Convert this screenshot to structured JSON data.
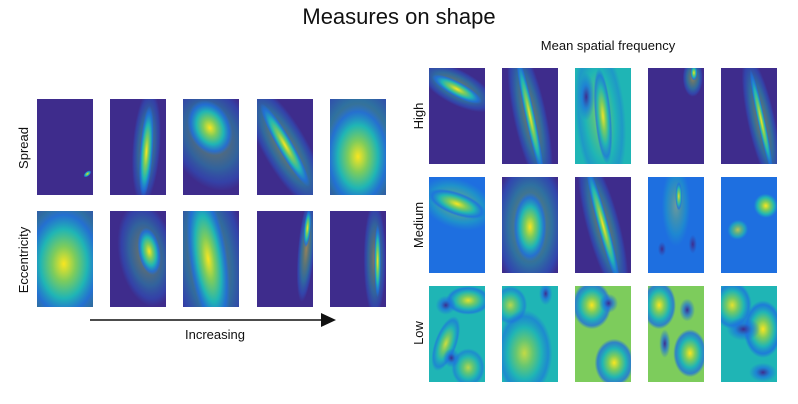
{
  "title": "Measures on shape",
  "left": {
    "row_labels": [
      "Spread",
      "Eccentricity"
    ],
    "axis_label": "Increasing"
  },
  "right": {
    "title": "Mean spatial frequency",
    "row_labels": [
      "High",
      "Medium",
      "Low"
    ]
  },
  "colors": {
    "low": "#3e2c8c",
    "mid_low": "#1e6fe0",
    "mid": "#1fb5b5",
    "mid_high": "#7dcc5c",
    "high": "#f9e620",
    "background": "#ffffff"
  }
}
